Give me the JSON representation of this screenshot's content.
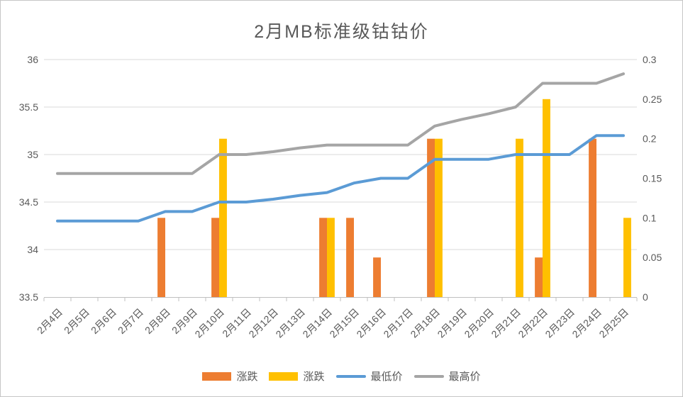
{
  "chart_data": {
    "type": "combo-bar-line",
    "title": "2月MB标准级钴钴价",
    "categories": [
      "2月4日",
      "2月5日",
      "2月6日",
      "2月7日",
      "2月8日",
      "2月9日",
      "2月10日",
      "2月11日",
      "2月12日",
      "2月13日",
      "2月14日",
      "2月15日",
      "2月16日",
      "2月17日",
      "2月18日",
      "2月19日",
      "2月20日",
      "2月21日",
      "2月22日",
      "2月23日",
      "2月24日",
      "2月25日"
    ],
    "series": [
      {
        "name": "涨跌",
        "type": "bar",
        "axis": "right",
        "color": "#ED7D31",
        "values": [
          null,
          null,
          null,
          null,
          0.1,
          null,
          0.1,
          null,
          null,
          null,
          0.1,
          0.1,
          0.05,
          null,
          0.2,
          null,
          null,
          null,
          0.05,
          null,
          0.2,
          null
        ]
      },
      {
        "name": "涨跌",
        "type": "bar",
        "axis": "right",
        "color": "#FFC000",
        "values": [
          null,
          null,
          null,
          null,
          null,
          null,
          0.2,
          null,
          null,
          null,
          0.1,
          null,
          null,
          null,
          0.2,
          null,
          null,
          0.2,
          0.25,
          null,
          null,
          0.1
        ]
      },
      {
        "name": "最低价",
        "type": "line",
        "axis": "left",
        "color": "#5B9BD5",
        "values": [
          34.3,
          34.3,
          34.3,
          34.3,
          34.4,
          34.4,
          34.5,
          34.5,
          34.53,
          34.57,
          34.6,
          34.7,
          34.75,
          34.75,
          34.95,
          34.95,
          34.95,
          35.0,
          35.0,
          35.0,
          35.2,
          35.2
        ]
      },
      {
        "name": "最高价",
        "type": "line",
        "axis": "left",
        "color": "#A5A5A5",
        "values": [
          34.8,
          34.8,
          34.8,
          34.8,
          34.8,
          34.8,
          35.0,
          35.0,
          35.03,
          35.07,
          35.1,
          35.1,
          35.1,
          35.1,
          35.3,
          35.37,
          35.43,
          35.5,
          35.75,
          35.75,
          35.75,
          35.85
        ]
      }
    ],
    "left_axis": {
      "min": 33.5,
      "max": 36,
      "step": 0.5,
      "tick_values": [
        36,
        35.5,
        35,
        34.5,
        34,
        33.5
      ],
      "tick_labels": [
        "36",
        "35.5",
        "35",
        "34.5",
        "34",
        "33.5"
      ]
    },
    "right_axis": {
      "min": 0,
      "max": 0.3,
      "step": 0.05,
      "tick_values": [
        0.3,
        0.25,
        0.2,
        0.15,
        0.1,
        0.05,
        0
      ],
      "tick_labels": [
        "0.3",
        "0.25",
        "0.2",
        "0.15",
        "0.1",
        "0.05",
        "0"
      ]
    },
    "grid": true,
    "legend_position": "bottom",
    "colors": {
      "gridline": "#D9D9D9",
      "axis_line": "#BFBFBF",
      "text": "#595959"
    }
  }
}
